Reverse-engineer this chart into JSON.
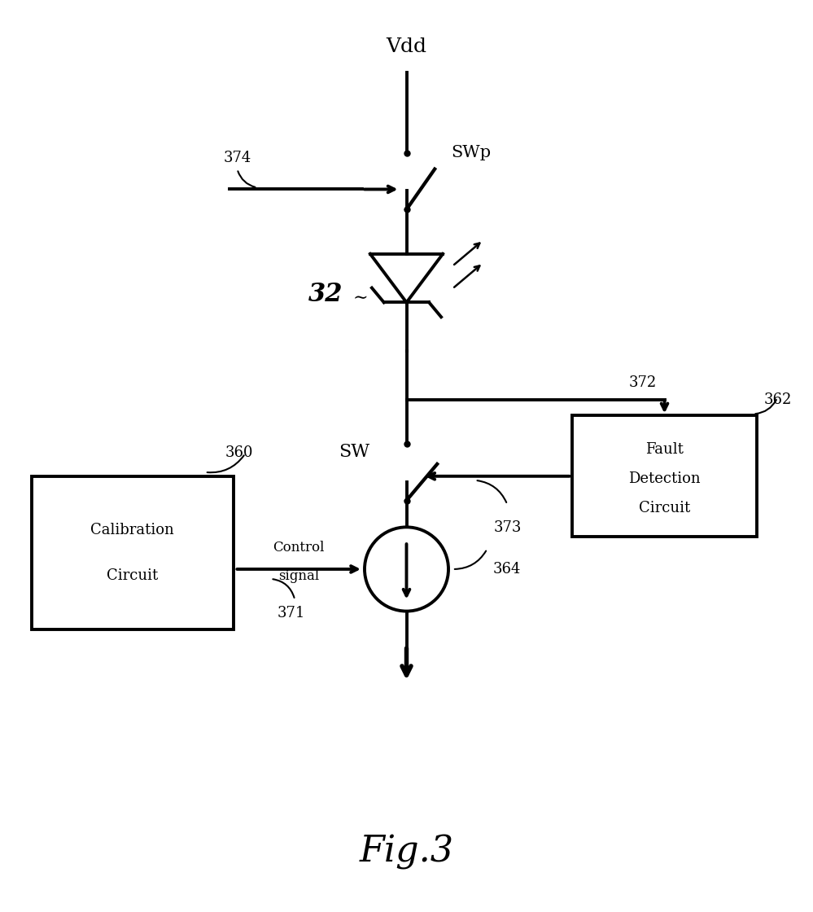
{
  "bg_color": "#ffffff",
  "line_color": "#000000",
  "line_width": 2.8,
  "fig_width": 9.99,
  "fig_height": 11.2,
  "title": "Fig.3",
  "title_fontsize": 32,
  "vdd_label": "Vdd",
  "swp_label": "SWp",
  "sw_label": "SW",
  "label_32": "32",
  "label_362": "362",
  "label_360": "360",
  "label_364": "364",
  "label_371": "371",
  "label_372": "372",
  "label_373": "373",
  "label_374": "374",
  "cal_label1": "Calibration",
  "cal_label2": "Circuit",
  "fault_label1": "Fault",
  "fault_label2": "Detection",
  "fault_label3": "Circuit",
  "ctrl_label1": "Control",
  "ctrl_label2": "signal"
}
